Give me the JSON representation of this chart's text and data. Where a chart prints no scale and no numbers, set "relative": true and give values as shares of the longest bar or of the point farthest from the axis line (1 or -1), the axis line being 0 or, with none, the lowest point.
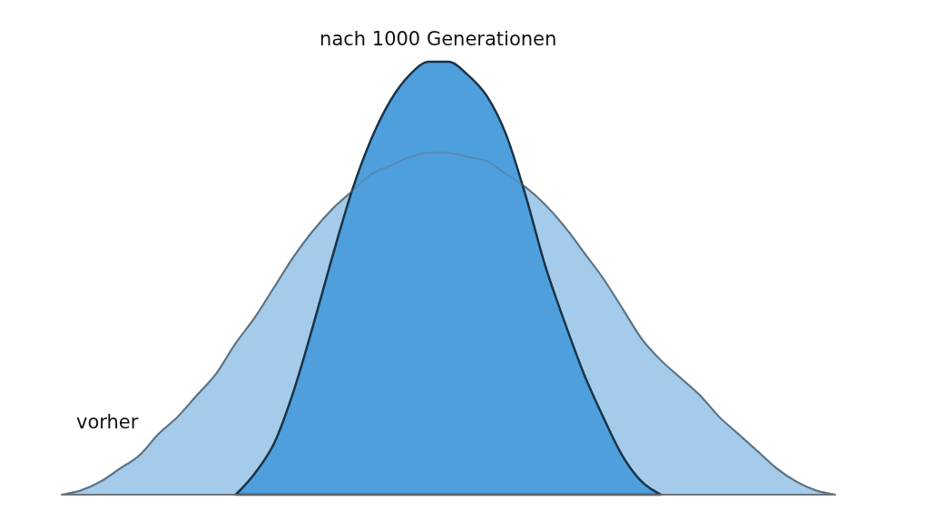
{
  "chart_data": {
    "type": "area",
    "relative": true,
    "categories": [
      null,
      null,
      null,
      null,
      null,
      null,
      null,
      null,
      null,
      null,
      null,
      null,
      null,
      null,
      null,
      null,
      null,
      null,
      null,
      null,
      null,
      null,
      null,
      null,
      null,
      null,
      null,
      null,
      null,
      null,
      null,
      null,
      null,
      null,
      null,
      null,
      null,
      null,
      null,
      null,
      null
    ],
    "series": [
      {
        "name": "vorher",
        "color": "#a5cbea",
        "values": [
          0,
          0.01,
          0.03,
          0.06,
          0.09,
          0.14,
          0.18,
          0.23,
          0.28,
          0.35,
          0.41,
          0.48,
          0.55,
          0.61,
          0.66,
          0.7,
          0.74,
          0.76,
          0.78,
          0.79,
          0.79,
          0.78,
          0.77,
          0.74,
          0.71,
          0.67,
          0.62,
          0.56,
          0.5,
          0.43,
          0.36,
          0.31,
          0.27,
          0.23,
          0.18,
          0.14,
          0.1,
          0.06,
          0.03,
          0.01,
          0
        ]
      },
      {
        "name": "nach 1000 Generationen",
        "color": "#4f9fdd",
        "values": [
          null,
          null,
          null,
          null,
          null,
          null,
          null,
          null,
          null,
          0,
          0.05,
          0.12,
          0.24,
          0.39,
          0.55,
          0.7,
          0.82,
          0.91,
          0.97,
          1,
          1,
          0.97,
          0.92,
          0.83,
          0.69,
          0.53,
          0.4,
          0.28,
          0.18,
          0.09,
          0.03,
          0,
          null,
          null,
          null,
          null,
          null,
          null,
          null,
          null,
          null
        ]
      }
    ]
  }
}
